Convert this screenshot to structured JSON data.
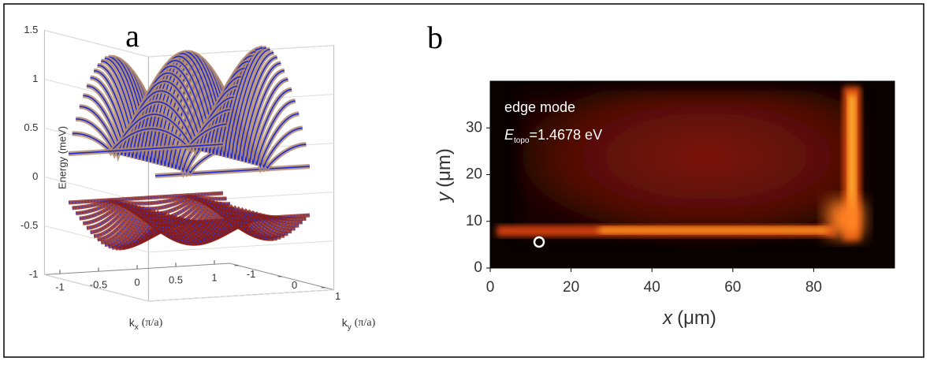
{
  "chart_data": [
    {
      "type": "surface3d",
      "panel_label": "a",
      "zlabel": "Energy (meV)",
      "xlabel": {
        "var": "k",
        "sub": "x",
        "unit": "(π/a)"
      },
      "ylabel": {
        "var": "k",
        "sub": "y",
        "unit": "(π/a)"
      },
      "xlim": [
        -1.2,
        1.2
      ],
      "xticks": [
        -1,
        -0.5,
        0,
        0.5,
        1
      ],
      "ylim": [
        -1.2,
        1.2
      ],
      "yticks": [
        -1,
        0,
        1
      ],
      "zlim": [
        -1,
        1.5
      ],
      "zticks": [
        -1,
        -0.5,
        0,
        0.5,
        1,
        1.5
      ],
      "grid": true
    },
    {
      "type": "heatmap",
      "panel_label": "b",
      "annotations": [
        {
          "text": "edge mode"
        },
        {
          "var": "E",
          "sub": "topo",
          "text": "=1.4678 eV"
        }
      ],
      "xlabel": {
        "var": "x",
        "unit": "(μm)"
      },
      "ylabel": {
        "var": "y",
        "unit": "(μm)"
      },
      "xlim": [
        0,
        100
      ],
      "xticks": [
        0,
        20,
        40,
        60,
        80
      ],
      "ylim": [
        0,
        40
      ],
      "yticks": [
        0,
        10,
        20,
        30
      ]
    }
  ]
}
